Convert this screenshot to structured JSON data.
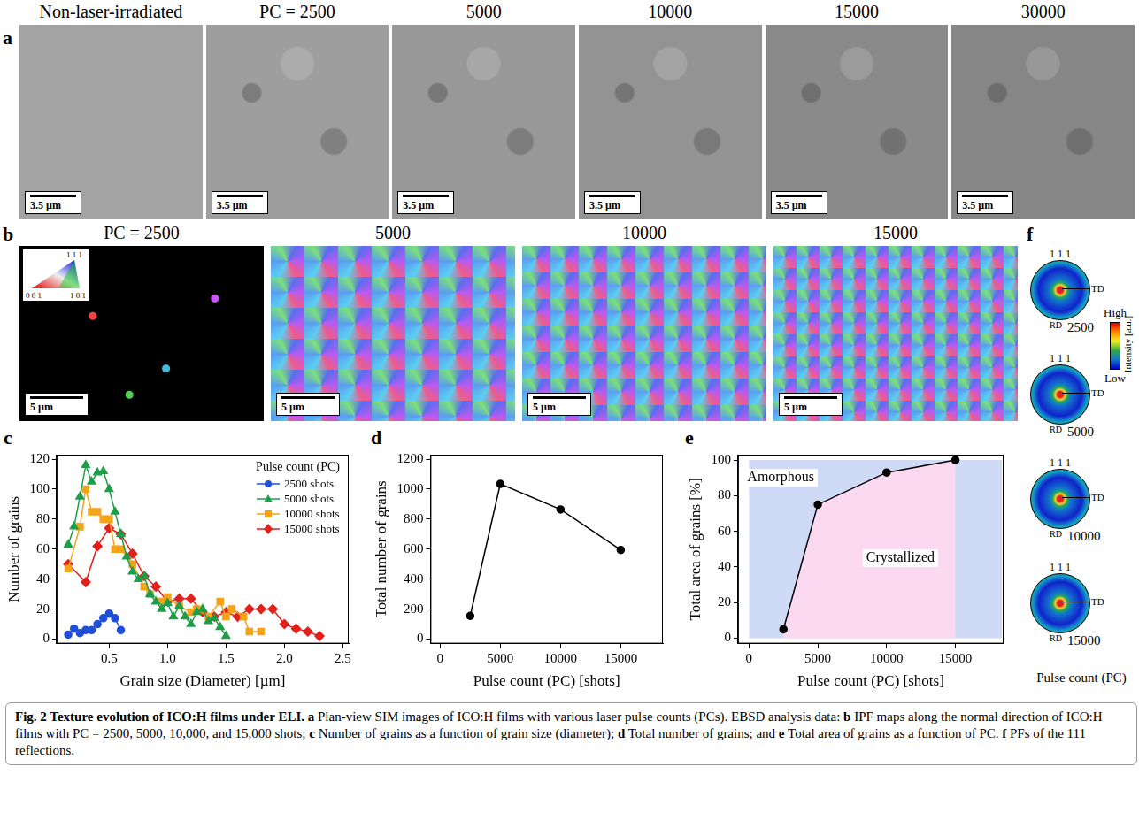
{
  "figure": {
    "panel_a": {
      "letter": "a",
      "titles": [
        "Non-laser-irradiated",
        "PC = 2500",
        "5000",
        "10000",
        "15000",
        "30000"
      ],
      "scale_bar": "3.5 µm"
    },
    "panel_b": {
      "letter": "b",
      "titles": [
        "PC = 2500",
        "5000",
        "10000",
        "15000"
      ],
      "scale_bar": "5 µm",
      "ipf_key": {
        "top": "1 1 1",
        "left": "0 0 1",
        "right": "1 0 1"
      }
    },
    "panel_f": {
      "letter": "f",
      "pole": "1 1 1",
      "directions": {
        "right": "TD",
        "bottom": "RD"
      },
      "labels": [
        "2500",
        "5000",
        "10000",
        "15000"
      ],
      "colorbar": {
        "high": "High",
        "low": "Low",
        "title": "Intensity [a.u.]"
      },
      "axis_title": "Pulse count (PC)"
    },
    "caption": {
      "title": "Fig. 2 Texture evolution of ICO:H films under ELI.",
      "parts": [
        {
          "letter": "a",
          "text": "Plan-view SIM images of ICO:H films with various laser pulse counts (PCs). EBSD analysis data:"
        },
        {
          "letter": "b",
          "text": "IPF maps along the normal direction of ICO:H films with PC = 2500, 5000, 10,000, and 15,000 shots;"
        },
        {
          "letter": "c",
          "text": "Number of grains as a function of grain size (diameter);"
        },
        {
          "letter": "d",
          "text": "Total number of grains; and"
        },
        {
          "letter": "e",
          "text": "Total area of grains as a function of PC."
        },
        {
          "letter": "f",
          "text": "PFs of the 111 reflections."
        }
      ]
    }
  },
  "chart_data": [
    {
      "letter": "c",
      "type": "line",
      "x_label": "Grain size (Diameter) [µm]",
      "y_label": "Number of grains",
      "xlim": [
        0.05,
        2.55
      ],
      "xticks": [
        0.5,
        {
          "value": 1,
          "label": "1.0"
        },
        1.5,
        {
          "value": 2,
          "label": "2.0"
        },
        2.5
      ],
      "ylim": [
        -3,
        123
      ],
      "yticks": [
        0,
        20,
        40,
        60,
        80,
        100,
        120
      ],
      "grid": false,
      "legend": "upper right",
      "legend_title": "Pulse count (PC)",
      "series": [
        {
          "name": "2500 shots",
          "color": "#1f4fd8",
          "marker": "circle",
          "x": [
            0.15,
            0.2,
            0.25,
            0.3,
            0.35,
            0.4,
            0.45,
            0.5,
            0.55,
            0.6
          ],
          "values": [
            3,
            7,
            4,
            6,
            6,
            10,
            14,
            17,
            14,
            6
          ]
        },
        {
          "name": "5000 shots",
          "color": "#1e9e4a",
          "marker": "triangle",
          "x": [
            0.15,
            0.2,
            0.25,
            0.3,
            0.35,
            0.4,
            0.45,
            0.5,
            0.55,
            0.6,
            0.65,
            0.7,
            0.75,
            0.8,
            0.85,
            0.9,
            0.95,
            1.0,
            1.05,
            1.1,
            1.15,
            1.2,
            1.25,
            1.3,
            1.35,
            1.4,
            1.45,
            1.5
          ],
          "values": [
            63,
            75,
            95,
            116,
            105,
            111,
            112,
            100,
            85,
            70,
            55,
            45,
            40,
            42,
            30,
            25,
            20,
            24,
            15,
            22,
            15,
            10,
            18,
            20,
            12,
            14,
            8,
            2
          ]
        },
        {
          "name": "10000 shots",
          "color": "#f5a318",
          "marker": "square",
          "x": [
            0.15,
            0.25,
            0.3,
            0.35,
            0.4,
            0.45,
            0.5,
            0.55,
            0.6,
            0.7,
            0.8,
            0.85,
            0.95,
            1.0,
            1.1,
            1.2,
            1.25,
            1.35,
            1.45,
            1.5,
            1.55,
            1.65,
            1.7,
            1.8
          ],
          "values": [
            47,
            75,
            100,
            85,
            85,
            80,
            80,
            60,
            60,
            50,
            35,
            30,
            25,
            28,
            22,
            18,
            20,
            15,
            25,
            15,
            20,
            15,
            5,
            5
          ]
        },
        {
          "name": "15000 shots",
          "color": "#e3201b",
          "marker": "diamond",
          "x": [
            0.15,
            0.3,
            0.4,
            0.5,
            0.6,
            0.7,
            0.8,
            0.9,
            1.0,
            1.1,
            1.2,
            1.3,
            1.4,
            1.5,
            1.6,
            1.7,
            1.8,
            1.9,
            2.0,
            2.1,
            2.2,
            2.3
          ],
          "values": [
            50,
            38,
            62,
            74,
            70,
            57,
            42,
            35,
            25,
            27,
            27,
            18,
            15,
            18,
            15,
            20,
            20,
            20,
            10,
            7,
            5,
            2
          ]
        }
      ]
    },
    {
      "letter": "d",
      "type": "line",
      "x_label": "Pulse count (PC) [shots]",
      "y_label": "Total number of grains",
      "x": [
        2500,
        5000,
        10000,
        15000
      ],
      "values": [
        155,
        1035,
        865,
        595
      ],
      "color": "#000000",
      "marker": "circle",
      "xlim": [
        -800,
        18500
      ],
      "xticks": [
        0,
        5000,
        10000,
        15000
      ],
      "ylim": [
        -30,
        1230
      ],
      "yticks": [
        0,
        200,
        400,
        600,
        800,
        1000,
        1200
      ],
      "grid": false
    },
    {
      "letter": "e",
      "type": "line",
      "x_label": "Pulse count (PC) [shots]",
      "y_label": "Total area of grains [%]",
      "x": [
        2500,
        5000,
        10000,
        15000
      ],
      "values": [
        5,
        75,
        93,
        100
      ],
      "color": "#000000",
      "marker": "circle",
      "xlim": [
        -800,
        18500
      ],
      "xticks": [
        0,
        5000,
        10000,
        15000
      ],
      "ylim": [
        -3,
        103
      ],
      "yticks": [
        0,
        20,
        40,
        60,
        80,
        100
      ],
      "grid": false,
      "annotations": [
        {
          "text": "Amorphous",
          "x": 2300,
          "y": 90
        },
        {
          "text": "Crystallized",
          "x": 11000,
          "y": 45
        }
      ]
    }
  ]
}
